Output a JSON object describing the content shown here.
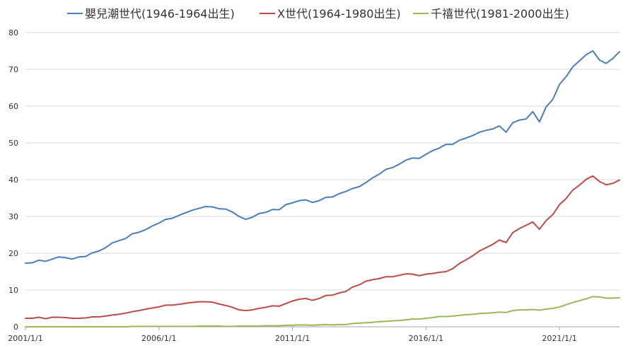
{
  "chart_data": {
    "type": "line",
    "title": "",
    "xlabel": "",
    "ylabel": "",
    "ylim": [
      0,
      80
    ],
    "y_ticks": [
      0,
      10,
      20,
      30,
      40,
      50,
      60,
      70,
      80
    ],
    "x_tick_labels": [
      "2001/1/1",
      "2006/1/1",
      "2011/1/1",
      "2016/1/1",
      "2021/1/1"
    ],
    "x_tick_index": [
      0,
      20,
      40,
      60,
      80
    ],
    "grid": "horizontal",
    "legend_position": "top",
    "series": [
      {
        "name": "嬰兒潮世代(1946-1964出生)",
        "color": "#4a7ebb",
        "values": [
          17.3,
          17.4,
          18.1,
          17.8,
          18.4,
          19.0,
          18.8,
          18.4,
          19.0,
          19.1,
          20.1,
          20.6,
          21.5,
          22.8,
          23.4,
          24.0,
          25.3,
          25.7,
          26.4,
          27.4,
          28.2,
          29.2,
          29.5,
          30.3,
          31.0,
          31.7,
          32.2,
          32.7,
          32.6,
          32.1,
          32.0,
          31.2,
          30.0,
          29.2,
          29.8,
          30.8,
          31.1,
          31.9,
          31.8,
          33.2,
          33.7,
          34.3,
          34.5,
          33.8,
          34.3,
          35.2,
          35.3,
          36.2,
          36.8,
          37.6,
          38.1,
          39.2,
          40.5,
          41.5,
          42.8,
          43.3,
          44.2,
          45.3,
          45.9,
          45.8,
          46.9,
          47.9,
          48.6,
          49.6,
          49.6,
          50.7,
          51.3,
          52.0,
          52.9,
          53.4,
          53.8,
          54.6,
          52.9,
          55.5,
          56.2,
          56.5,
          58.5,
          55.7,
          59.8,
          61.8,
          65.9,
          68.0,
          70.7,
          72.3,
          74.0,
          75.0,
          72.5,
          71.6,
          73.0,
          74.8
        ]
      },
      {
        "name": "X世代(1964-1980出生)",
        "color": "#be4b48",
        "values": [
          2.3,
          2.3,
          2.6,
          2.2,
          2.6,
          2.6,
          2.5,
          2.3,
          2.3,
          2.4,
          2.7,
          2.7,
          2.9,
          3.2,
          3.4,
          3.7,
          4.1,
          4.4,
          4.8,
          5.1,
          5.4,
          5.9,
          5.9,
          6.1,
          6.4,
          6.6,
          6.8,
          6.8,
          6.7,
          6.2,
          5.8,
          5.3,
          4.6,
          4.4,
          4.6,
          5.0,
          5.3,
          5.7,
          5.6,
          6.3,
          7.0,
          7.5,
          7.7,
          7.2,
          7.7,
          8.5,
          8.6,
          9.2,
          9.6,
          10.8,
          11.4,
          12.4,
          12.8,
          13.1,
          13.6,
          13.6,
          14.0,
          14.4,
          14.3,
          13.9,
          14.3,
          14.5,
          14.8,
          15.0,
          15.8,
          17.2,
          18.2,
          19.3,
          20.6,
          21.5,
          22.4,
          23.6,
          22.9,
          25.6,
          26.7,
          27.6,
          28.5,
          26.5,
          28.9,
          30.5,
          33.2,
          34.9,
          37.2,
          38.5,
          40.1,
          41.0,
          39.5,
          38.6,
          39.0,
          39.9
        ]
      },
      {
        "name": "千禧世代(1981-2000出生)",
        "color": "#98b954",
        "values": [
          0.0,
          0.0,
          0.0,
          0.0,
          0.0,
          0.0,
          0.0,
          0.0,
          0.0,
          0.0,
          0.0,
          0.0,
          0.0,
          0.0,
          0.0,
          0.0,
          0.1,
          0.1,
          0.1,
          0.1,
          0.1,
          0.1,
          0.1,
          0.1,
          0.1,
          0.1,
          0.2,
          0.2,
          0.2,
          0.2,
          0.1,
          0.1,
          0.2,
          0.2,
          0.2,
          0.2,
          0.3,
          0.3,
          0.3,
          0.4,
          0.4,
          0.5,
          0.5,
          0.4,
          0.5,
          0.6,
          0.5,
          0.6,
          0.6,
          0.9,
          1.0,
          1.1,
          1.2,
          1.4,
          1.5,
          1.6,
          1.7,
          1.9,
          2.1,
          2.1,
          2.3,
          2.5,
          2.8,
          2.8,
          2.9,
          3.1,
          3.3,
          3.4,
          3.6,
          3.7,
          3.8,
          4.0,
          3.9,
          4.4,
          4.6,
          4.6,
          4.7,
          4.5,
          4.8,
          5.0,
          5.4,
          6.0,
          6.6,
          7.1,
          7.6,
          8.2,
          8.1,
          7.8,
          7.8,
          7.9
        ]
      }
    ]
  }
}
